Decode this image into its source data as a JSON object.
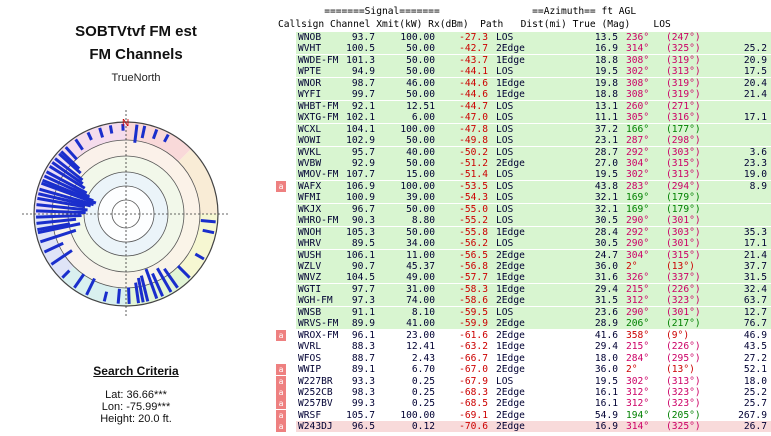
{
  "panel": {
    "title_line1": "SOBTVtvf FM est",
    "title_line2": "FM Channels",
    "north_label": "TrueNorth",
    "north_marker": "N",
    "criteria_heading": "Search Criteria",
    "lat": "Lat: 36.66***",
    "lon": "Lon: -75.99***",
    "height": "Height: 20.0 ft."
  },
  "table": {
    "header_top": "        =======Signal=======                ==Azimuth== ft AGL",
    "header_cols": "Callsign Channel Xmit(kW) Rx(dBm)  Path   Dist(mi) True (Mag)    LOS",
    "flag_char": "a",
    "colors": {
      "green_row": "#d8f5d0",
      "pink_row": "#f8dada",
      "rx_red": "#cc0000",
      "az_green": "#008000",
      "az_magenta": "#cc0066",
      "az_red": "#cc0000"
    },
    "rows": [
      {
        "cs": "WNOB",
        "ch": "93.7",
        "xm": "100.00",
        "rx": "-27.3",
        "path": "LOS",
        "dist": "13.5",
        "az": "236°",
        "mag": "(247°)",
        "agl": "",
        "band": "green",
        "az_col": "magenta",
        "flag": false
      },
      {
        "cs": "WVHT",
        "ch": "100.5",
        "xm": "50.00",
        "rx": "-42.7",
        "path": "2Edge",
        "dist": "16.9",
        "az": "314°",
        "mag": "(325°)",
        "agl": "25.2",
        "band": "green",
        "az_col": "magenta",
        "flag": false
      },
      {
        "cs": "WWDE-FM",
        "ch": "101.3",
        "xm": "50.00",
        "rx": "-43.7",
        "path": "1Edge",
        "dist": "18.8",
        "az": "308°",
        "mag": "(319°)",
        "agl": "20.9",
        "band": "green",
        "az_col": "magenta",
        "flag": false
      },
      {
        "cs": "WPTE",
        "ch": "94.9",
        "xm": "50.00",
        "rx": "-44.1",
        "path": "LOS",
        "dist": "19.5",
        "az": "302°",
        "mag": "(313°)",
        "agl": "17.5",
        "band": "green",
        "az_col": "magenta",
        "flag": false
      },
      {
        "cs": "WNOR",
        "ch": "98.7",
        "xm": "46.00",
        "rx": "-44.6",
        "path": "1Edge",
        "dist": "19.8",
        "az": "308°",
        "mag": "(319°)",
        "agl": "20.4",
        "band": "green",
        "az_col": "magenta",
        "flag": false
      },
      {
        "cs": "WYFI",
        "ch": "99.7",
        "xm": "50.00",
        "rx": "-44.6",
        "path": "1Edge",
        "dist": "18.8",
        "az": "308°",
        "mag": "(319°)",
        "agl": "21.4",
        "band": "green",
        "az_col": "magenta",
        "flag": false
      },
      {
        "cs": "WHBT-FM",
        "ch": "92.1",
        "xm": "12.51",
        "rx": "-44.7",
        "path": "LOS",
        "dist": "13.1",
        "az": "260°",
        "mag": "(271°)",
        "agl": "",
        "band": "green",
        "az_col": "magenta",
        "flag": false
      },
      {
        "cs": "WXTG-FM",
        "ch": "102.1",
        "xm": "6.00",
        "rx": "-47.0",
        "path": "LOS",
        "dist": "11.1",
        "az": "305°",
        "mag": "(316°)",
        "agl": "17.1",
        "band": "green",
        "az_col": "magenta",
        "flag": false
      },
      {
        "cs": "WCXL",
        "ch": "104.1",
        "xm": "100.00",
        "rx": "-47.8",
        "path": "LOS",
        "dist": "37.2",
        "az": "166°",
        "mag": "(177°)",
        "agl": "",
        "band": "green",
        "az_col": "green",
        "flag": false
      },
      {
        "cs": "WOWI",
        "ch": "102.9",
        "xm": "50.00",
        "rx": "-49.8",
        "path": "LOS",
        "dist": "23.1",
        "az": "287°",
        "mag": "(298°)",
        "agl": "",
        "band": "green",
        "az_col": "magenta",
        "flag": false
      },
      {
        "cs": "WVKL",
        "ch": "95.7",
        "xm": "40.00",
        "rx": "-50.2",
        "path": "LOS",
        "dist": "28.7",
        "az": "292°",
        "mag": "(303°)",
        "agl": "3.6",
        "band": "green",
        "az_col": "magenta",
        "flag": false
      },
      {
        "cs": "WVBW",
        "ch": "92.9",
        "xm": "50.00",
        "rx": "-51.2",
        "path": "2Edge",
        "dist": "27.0",
        "az": "304°",
        "mag": "(315°)",
        "agl": "23.3",
        "band": "green",
        "az_col": "magenta",
        "flag": false
      },
      {
        "cs": "WMOV-FM",
        "ch": "107.7",
        "xm": "15.00",
        "rx": "-51.4",
        "path": "LOS",
        "dist": "19.5",
        "az": "302°",
        "mag": "(313°)",
        "agl": "19.0",
        "band": "green",
        "az_col": "magenta",
        "flag": false
      },
      {
        "cs": "WAFX",
        "ch": "106.9",
        "xm": "100.00",
        "rx": "-53.5",
        "path": "LOS",
        "dist": "43.8",
        "az": "283°",
        "mag": "(294°)",
        "agl": "8.9",
        "band": "green",
        "az_col": "magenta",
        "flag": true
      },
      {
        "cs": "WFMI",
        "ch": "100.9",
        "xm": "39.00",
        "rx": "-54.3",
        "path": "LOS",
        "dist": "32.1",
        "az": "169°",
        "mag": "(179°)",
        "agl": "",
        "band": "green",
        "az_col": "green",
        "flag": false
      },
      {
        "cs": "WKJX",
        "ch": "96.7",
        "xm": "50.00",
        "rx": "-55.0",
        "path": "LOS",
        "dist": "32.1",
        "az": "169°",
        "mag": "(179°)",
        "agl": "",
        "band": "green",
        "az_col": "green",
        "flag": false
      },
      {
        "cs": "WHRO-FM",
        "ch": "90.3",
        "xm": "8.80",
        "rx": "-55.2",
        "path": "LOS",
        "dist": "30.5",
        "az": "290°",
        "mag": "(301°)",
        "agl": "",
        "band": "green",
        "az_col": "magenta",
        "flag": false
      },
      {
        "cs": "WNOH",
        "ch": "105.3",
        "xm": "50.00",
        "rx": "-55.8",
        "path": "1Edge",
        "dist": "28.4",
        "az": "292°",
        "mag": "(303°)",
        "agl": "35.3",
        "band": "green",
        "az_col": "magenta",
        "flag": false
      },
      {
        "cs": "WHRV",
        "ch": "89.5",
        "xm": "34.00",
        "rx": "-56.2",
        "path": "LOS",
        "dist": "30.5",
        "az": "290°",
        "mag": "(301°)",
        "agl": "17.1",
        "band": "green",
        "az_col": "magenta",
        "flag": false
      },
      {
        "cs": "WUSH",
        "ch": "106.1",
        "xm": "11.00",
        "rx": "-56.5",
        "path": "2Edge",
        "dist": "24.7",
        "az": "304°",
        "mag": "(315°)",
        "agl": "21.4",
        "band": "green",
        "az_col": "magenta",
        "flag": false
      },
      {
        "cs": "WZLV",
        "ch": "90.7",
        "xm": "45.37",
        "rx": "-56.8",
        "path": "2Edge",
        "dist": "36.0",
        "az": "2°",
        "mag": "(13°)",
        "agl": "37.7",
        "band": "green",
        "az_col": "red",
        "flag": false
      },
      {
        "cs": "WNVZ",
        "ch": "104.5",
        "xm": "49.00",
        "rx": "-57.7",
        "path": "1Edge",
        "dist": "31.6",
        "az": "326°",
        "mag": "(337°)",
        "agl": "31.5",
        "band": "green",
        "az_col": "magenta",
        "flag": false
      },
      {
        "cs": "WGTI",
        "ch": "97.7",
        "xm": "31.00",
        "rx": "-58.3",
        "path": "1Edge",
        "dist": "29.4",
        "az": "215°",
        "mag": "(226°)",
        "agl": "32.4",
        "band": "green",
        "az_col": "magenta",
        "flag": false
      },
      {
        "cs": "WGH-FM",
        "ch": "97.3",
        "xm": "74.00",
        "rx": "-58.6",
        "path": "2Edge",
        "dist": "31.5",
        "az": "312°",
        "mag": "(323°)",
        "agl": "63.7",
        "band": "green",
        "az_col": "magenta",
        "flag": false
      },
      {
        "cs": "WNSB",
        "ch": "91.1",
        "xm": "8.10",
        "rx": "-59.5",
        "path": "LOS",
        "dist": "23.6",
        "az": "290°",
        "mag": "(301°)",
        "agl": "12.7",
        "band": "green",
        "az_col": "magenta",
        "flag": false
      },
      {
        "cs": "WRVS-FM",
        "ch": "89.9",
        "xm": "41.00",
        "rx": "-59.9",
        "path": "2Edge",
        "dist": "28.9",
        "az": "206°",
        "mag": "(217°)",
        "agl": "76.7",
        "band": "green",
        "az_col": "green",
        "flag": false
      },
      {
        "cs": "WROX-FM",
        "ch": "96.1",
        "xm": "23.00",
        "rx": "-61.6",
        "path": "2Edge",
        "dist": "41.6",
        "az": "358°",
        "mag": "(9°)",
        "agl": "46.9",
        "band": "white",
        "az_col": "red",
        "flag": true
      },
      {
        "cs": "WVRL",
        "ch": "88.3",
        "xm": "12.41",
        "rx": "-63.2",
        "path": "1Edge",
        "dist": "29.4",
        "az": "215°",
        "mag": "(226°)",
        "agl": "43.5",
        "band": "white",
        "az_col": "magenta",
        "flag": false
      },
      {
        "cs": "WFOS",
        "ch": "88.7",
        "xm": "2.43",
        "rx": "-66.7",
        "path": "1Edge",
        "dist": "18.0",
        "az": "284°",
        "mag": "(295°)",
        "agl": "27.2",
        "band": "white",
        "az_col": "magenta",
        "flag": false
      },
      {
        "cs": "WWIP",
        "ch": "89.1",
        "xm": "6.70",
        "rx": "-67.0",
        "path": "2Edge",
        "dist": "36.0",
        "az": "2°",
        "mag": "(13°)",
        "agl": "52.1",
        "band": "white",
        "az_col": "red",
        "flag": true
      },
      {
        "cs": "W227BR",
        "ch": "93.3",
        "xm": "0.25",
        "rx": "-67.9",
        "path": "LOS",
        "dist": "19.5",
        "az": "302°",
        "mag": "(313°)",
        "agl": "18.0",
        "band": "white",
        "az_col": "magenta",
        "flag": true
      },
      {
        "cs": "W252CB",
        "ch": "98.3",
        "xm": "0.25",
        "rx": "-68.3",
        "path": "2Edge",
        "dist": "16.1",
        "az": "312°",
        "mag": "(323°)",
        "agl": "25.2",
        "band": "white",
        "az_col": "magenta",
        "flag": true
      },
      {
        "cs": "W257BV",
        "ch": "99.3",
        "xm": "0.25",
        "rx": "-68.5",
        "path": "2Edge",
        "dist": "16.1",
        "az": "312°",
        "mag": "(323°)",
        "agl": "25.7",
        "band": "white",
        "az_col": "magenta",
        "flag": true
      },
      {
        "cs": "WRSF",
        "ch": "105.7",
        "xm": "100.00",
        "rx": "-69.1",
        "path": "2Edge",
        "dist": "54.9",
        "az": "194°",
        "mag": "(205°)",
        "agl": "267.9",
        "band": "white",
        "az_col": "green",
        "flag": true
      },
      {
        "cs": "W243DJ",
        "ch": "96.5",
        "xm": "0.12",
        "rx": "-70.6",
        "path": "2Edge",
        "dist": "16.9",
        "az": "314°",
        "mag": "(325°)",
        "agl": "26.7",
        "band": "pink",
        "az_col": "magenta",
        "flag": true
      }
    ]
  },
  "polar": {
    "spokes": [
      {
        "az": 7,
        "len": 0.22
      },
      {
        "az": 12,
        "len": 0.15
      },
      {
        "az": 20,
        "len": 0.12
      },
      {
        "az": 28,
        "len": 0.1
      },
      {
        "az": 95,
        "len": 0.18
      },
      {
        "az": 102,
        "len": 0.14
      },
      {
        "az": 120,
        "len": 0.12
      },
      {
        "az": 135,
        "len": 0.2
      },
      {
        "az": 145,
        "len": 0.28
      },
      {
        "az": 150,
        "len": 0.33
      },
      {
        "az": 156,
        "len": 0.3
      },
      {
        "az": 160,
        "len": 0.38
      },
      {
        "az": 166,
        "len": 0.32
      },
      {
        "az": 169,
        "len": 0.3
      },
      {
        "az": 172,
        "len": 0.25
      },
      {
        "az": 178,
        "len": 0.2
      },
      {
        "az": 185,
        "len": 0.18
      },
      {
        "az": 194,
        "len": 0.12
      },
      {
        "az": 206,
        "len": 0.22
      },
      {
        "az": 215,
        "len": 0.2
      },
      {
        "az": 225,
        "len": 0.12
      },
      {
        "az": 236,
        "len": 0.3
      },
      {
        "az": 245,
        "len": 0.25
      },
      {
        "az": 252,
        "len": 0.45
      },
      {
        "az": 258,
        "len": 0.52
      },
      {
        "az": 260,
        "len": 0.4
      },
      {
        "az": 264,
        "len": 0.48
      },
      {
        "az": 268,
        "len": 0.55
      },
      {
        "az": 272,
        "len": 0.6
      },
      {
        "az": 276,
        "len": 0.62
      },
      {
        "az": 280,
        "len": 0.58
      },
      {
        "az": 283,
        "len": 0.65
      },
      {
        "az": 286,
        "len": 0.68
      },
      {
        "az": 290,
        "len": 0.7
      },
      {
        "az": 292,
        "len": 0.66
      },
      {
        "az": 295,
        "len": 0.6
      },
      {
        "az": 298,
        "len": 0.55
      },
      {
        "az": 302,
        "len": 0.5
      },
      {
        "az": 305,
        "len": 0.45
      },
      {
        "az": 308,
        "len": 0.42
      },
      {
        "az": 312,
        "len": 0.35
      },
      {
        "az": 314,
        "len": 0.3
      },
      {
        "az": 318,
        "len": 0.2
      },
      {
        "az": 326,
        "len": 0.15
      },
      {
        "az": 335,
        "len": 0.1
      },
      {
        "az": 343,
        "len": 0.12
      },
      {
        "az": 350,
        "len": 0.1
      },
      {
        "az": 358,
        "len": 0.08
      }
    ]
  }
}
